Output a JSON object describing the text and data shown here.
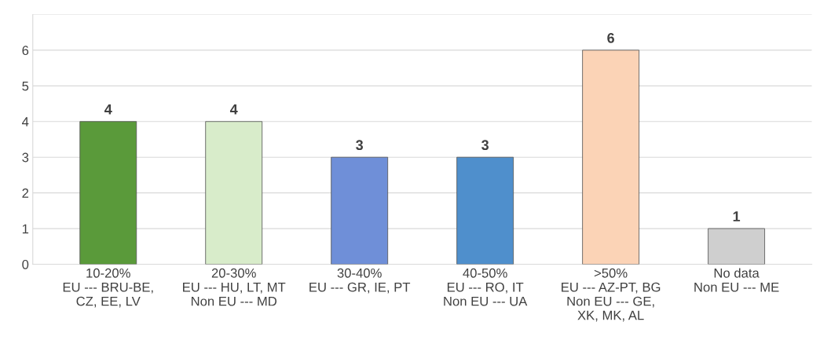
{
  "chart_data": {
    "type": "bar",
    "categories": [
      "10-20%\nEU --- BRU-BE,\nCZ, EE, LV",
      "20-30%\nEU --- HU, LT, MT\nNon EU --- MD",
      "30-40%\nEU --- GR, IE, PT",
      "40-50%\nEU --- RO, IT\nNon EU --- UA",
      ">50%\nEU --- AZ-PT, BG\nNon EU --- GE,\nXK, MK, AL",
      "No data\nNon EU --- ME"
    ],
    "values": [
      4,
      4,
      3,
      3,
      6,
      1
    ],
    "colors": [
      "#5a9a3a",
      "#d8ecca",
      "#6f8fd8",
      "#4f8fcc",
      "#fbd3b6",
      "#cfcfcf"
    ],
    "ylim": [
      0,
      7
    ],
    "yticks": [
      0,
      1,
      2,
      3,
      4,
      5,
      6,
      {
        "value": 7,
        "label": null
      }
    ],
    "grid": "y",
    "data_labels": true
  }
}
